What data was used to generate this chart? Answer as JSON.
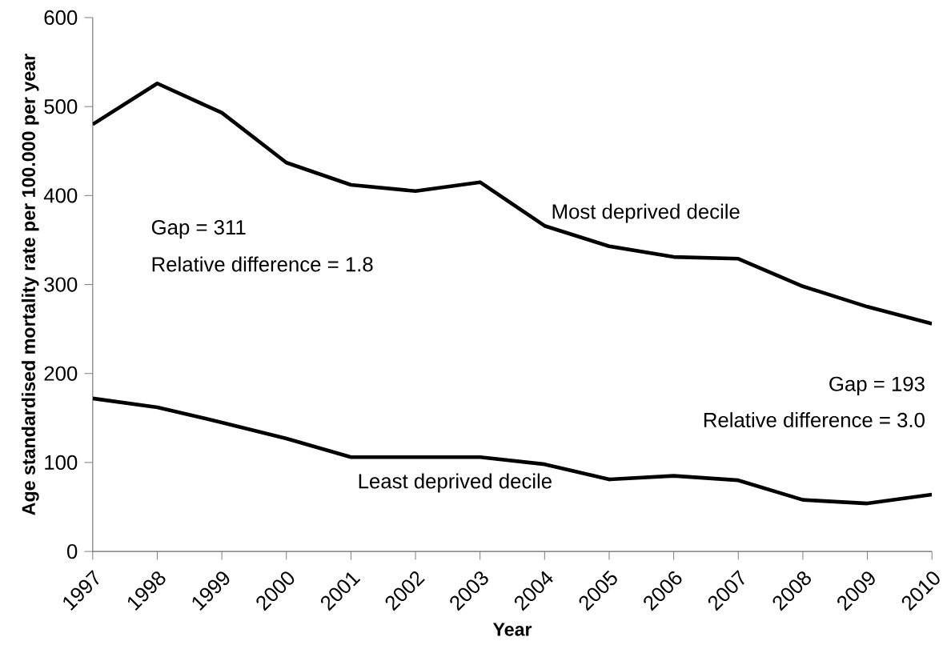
{
  "chart_data": {
    "type": "line",
    "xlabel": "Year",
    "ylabel": "Age standardised mortality rate per 100.000 per year",
    "categories": [
      "1997",
      "1998",
      "1999",
      "2000",
      "2001",
      "2002",
      "2003",
      "2004",
      "2005",
      "2006",
      "2007",
      "2008",
      "2009",
      "2010"
    ],
    "series": [
      {
        "name": "Most deprived decile",
        "color": "#000000",
        "values": [
          480,
          526,
          493,
          437,
          412,
          405,
          415,
          366,
          343,
          331,
          329,
          298,
          275,
          256
        ]
      },
      {
        "name": "Least deprived decile",
        "color": "#000000",
        "values": [
          172,
          162,
          145,
          127,
          106,
          106,
          106,
          98,
          81,
          85,
          80,
          58,
          54,
          64
        ]
      }
    ],
    "ylim": [
      0,
      600
    ],
    "yticks": [
      0,
      100,
      200,
      300,
      400,
      500,
      600
    ],
    "grid": false,
    "legend": false,
    "marker": "none",
    "line_style": "solid",
    "annotations": [
      "Gap = 311",
      "Relative difference = 1.8",
      "Gap = 193",
      "Relative difference = 3.0"
    ]
  }
}
